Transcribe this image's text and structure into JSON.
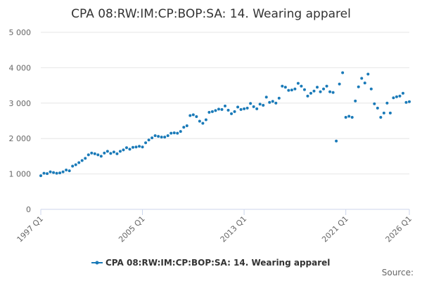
{
  "chart_data": {
    "type": "line",
    "title": "CPA 08:RW:IM:CP:BOP:SA: 14. Wearing apparel",
    "source": "Source:",
    "categories": [
      "1997 Q1",
      null,
      null,
      null,
      null,
      null,
      null,
      null,
      null,
      null,
      null,
      null,
      null,
      null,
      null,
      null,
      null,
      null,
      null,
      null,
      null,
      null,
      null,
      null,
      null,
      null,
      null,
      null,
      null,
      null,
      null,
      null,
      "2005 Q1",
      null,
      null,
      null,
      null,
      null,
      null,
      null,
      null,
      null,
      null,
      null,
      null,
      null,
      null,
      null,
      null,
      null,
      null,
      null,
      null,
      null,
      null,
      null,
      null,
      null,
      null,
      null,
      null,
      null,
      null,
      null,
      "2013 Q1",
      null,
      null,
      null,
      null,
      null,
      null,
      null,
      null,
      null,
      null,
      null,
      null,
      null,
      null,
      null,
      null,
      null,
      null,
      null,
      null,
      null,
      null,
      null,
      null,
      null,
      null,
      null,
      null,
      null,
      null,
      null,
      "2021 Q1",
      null,
      null,
      null,
      null,
      null,
      null,
      null,
      null,
      null,
      null,
      null,
      null,
      null,
      null,
      null,
      null,
      null,
      null,
      null,
      "2026 Q1"
    ],
    "series": [
      {
        "name": "CPA 08:RW:IM:CP:BOP:SA: 14. Wearing apparel",
        "color": "#1a7ab8",
        "values": [
          950,
          1020,
          1010,
          1060,
          1040,
          1020,
          1030,
          1060,
          1110,
          1090,
          1220,
          1260,
          1320,
          1380,
          1440,
          1540,
          1590,
          1570,
          1540,
          1500,
          1590,
          1640,
          1580,
          1620,
          1570,
          1640,
          1680,
          1740,
          1700,
          1750,
          1760,
          1780,
          1760,
          1880,
          1960,
          2020,
          2080,
          2060,
          2040,
          2040,
          2080,
          2150,
          2160,
          2150,
          2200,
          2320,
          2360,
          2650,
          2670,
          2620,
          2490,
          2430,
          2530,
          2740,
          2760,
          2790,
          2830,
          2820,
          2920,
          2800,
          2700,
          2760,
          2890,
          2820,
          2840,
          2860,
          2990,
          2900,
          2840,
          2970,
          2940,
          3170,
          3020,
          3050,
          3000,
          3140,
          3480,
          3450,
          3360,
          3370,
          3400,
          3560,
          3480,
          3380,
          3200,
          3280,
          3340,
          3450,
          3320,
          3400,
          3480,
          3320,
          3300,
          1930,
          3540,
          3860,
          2600,
          2630,
          2600,
          3060,
          3460,
          3700,
          3570,
          3820,
          3400,
          2980,
          2860,
          2600,
          2720,
          3000,
          2720,
          3150,
          3180,
          3200,
          3280,
          3020,
          3040
        ]
      }
    ],
    "ylim": [
      0,
      5000
    ],
    "yticks": [
      0,
      {
        "value": 1000,
        "label": "1 000"
      },
      {
        "value": 2000,
        "label": "2 000"
      },
      {
        "value": 3000,
        "label": "3 000"
      },
      {
        "value": 4000,
        "label": "4 000"
      },
      {
        "value": 5000,
        "label": "5 000"
      }
    ],
    "grid": true
  }
}
